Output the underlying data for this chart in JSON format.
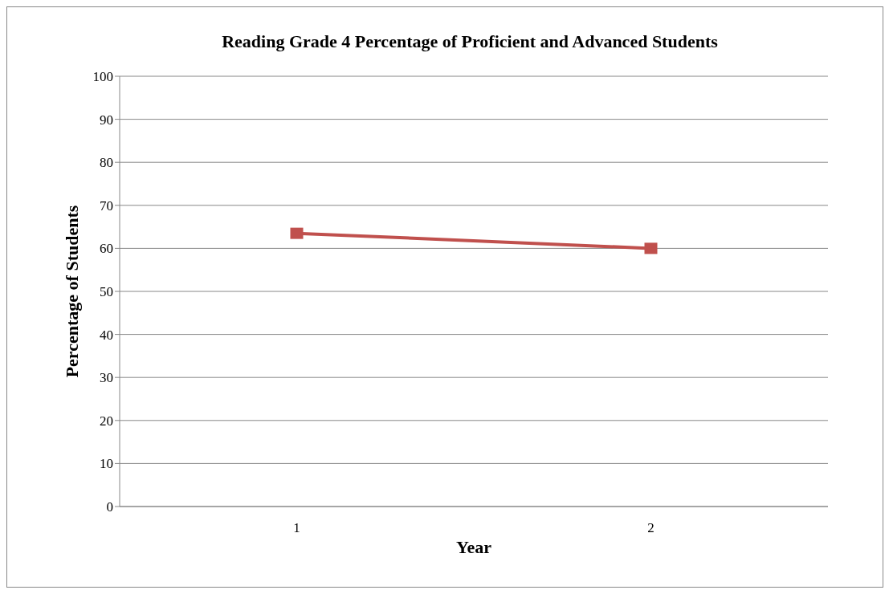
{
  "chart_data": {
    "type": "line",
    "title": "Reading Grade 4 Percentage of Proficient and Advanced Students",
    "xlabel": "Year",
    "ylabel": "Percentage of Students",
    "categories": [
      "1",
      "2"
    ],
    "series": [
      {
        "color": "#c0504d",
        "values": [
          63.5,
          60
        ]
      }
    ],
    "ylim": [
      0,
      100
    ],
    "yticks": [
      0,
      10,
      20,
      30,
      40,
      50,
      60,
      70,
      80,
      90,
      100
    ],
    "grid": "y",
    "marker": "square",
    "line_style": "solid"
  }
}
